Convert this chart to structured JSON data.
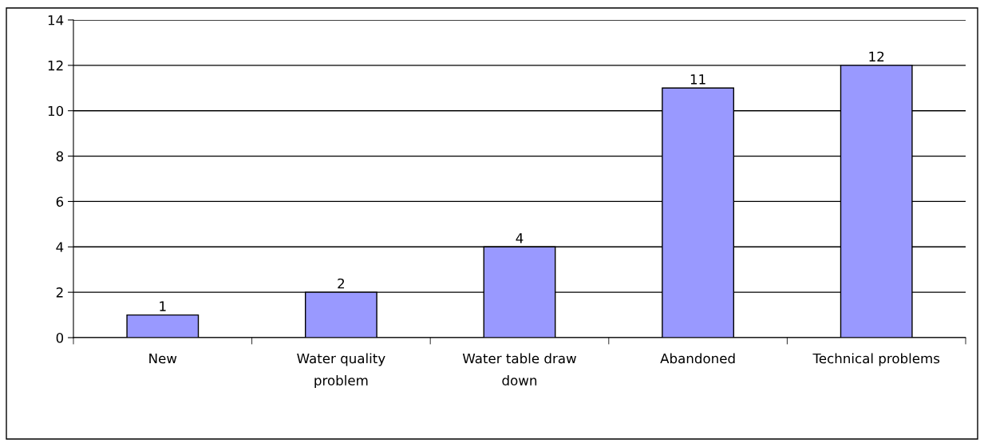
{
  "chart_data": {
    "type": "bar",
    "categories": [
      "New",
      "Water quality problem",
      "Water table draw down",
      "Abandoned",
      "Technical problems"
    ],
    "values": [
      1,
      2,
      4,
      11,
      12
    ],
    "color": "#9999ff",
    "ylim": [
      0,
      14
    ],
    "yticks": [
      0,
      2,
      4,
      6,
      8,
      10,
      12,
      14
    ],
    "grid": "y",
    "data_labels": true
  }
}
